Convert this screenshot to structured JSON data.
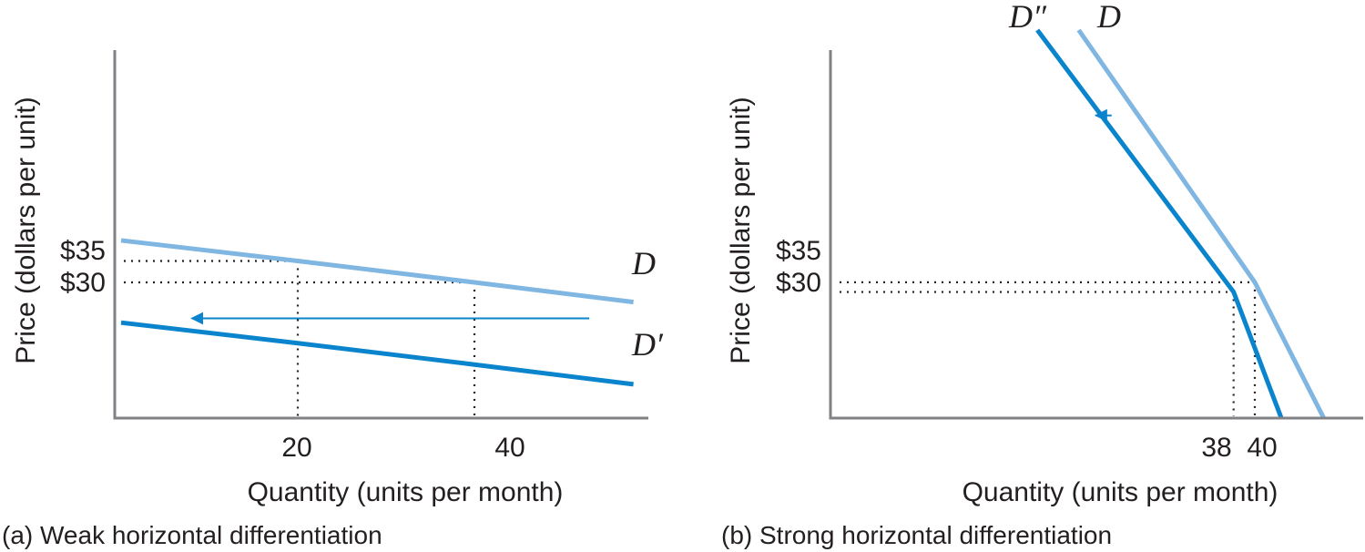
{
  "colors": {
    "axis": "#808285",
    "dotted": "#231f20",
    "demand_original": "#7fb6e2",
    "demand_shifted": "#0a84cc",
    "text": "#231f20"
  },
  "chart_data": [
    {
      "panel": "a",
      "type": "line",
      "caption": "(a) Weak horizontal differentiation",
      "xlabel": "Quantity (units per month)",
      "ylabel": "Price (dollars per unit)",
      "x_ticks": [
        "20",
        "40"
      ],
      "y_ticks": [
        "$35",
        "$30"
      ],
      "grid": false,
      "series": [
        {
          "name": "D",
          "role": "original",
          "color": "#7fb6e2",
          "points": [
            [
              0,
              37.4
            ],
            [
              20,
              35
            ],
            [
              40,
              32.5
            ],
            [
              58,
              30.2
            ]
          ]
        },
        {
          "name": "D′",
          "role": "shifted",
          "color": "#0a84cc",
          "points": [
            [
              0,
              27.8
            ],
            [
              20,
              25.4
            ],
            [
              40,
              22.9
            ],
            [
              58,
              20.6
            ]
          ]
        }
      ],
      "reference_points": [
        {
          "x": 20,
          "y": 35
        },
        {
          "x": 40,
          "y": 32.5
        }
      ],
      "shift_arrow": {
        "direction": "left",
        "from_x": 53,
        "to_x": 8,
        "y": 28.3
      }
    },
    {
      "panel": "b",
      "type": "line",
      "caption": "(b) Strong horizontal differentiation",
      "xlabel": "Quantity (units per month)",
      "ylabel": "Price (dollars per unit)",
      "x_ticks": [
        "38",
        "40"
      ],
      "y_ticks": [
        "$35",
        "$30"
      ],
      "grid": false,
      "series": [
        {
          "name": "D",
          "role": "original",
          "color": "#7fb6e2",
          "points": [
            [
              23.4,
              100
            ],
            [
              40,
              35
            ],
            [
              46.5,
              0
            ]
          ]
        },
        {
          "name": "D″",
          "role": "shifted",
          "color": "#0a84cc",
          "points": [
            [
              19.5,
              100
            ],
            [
              38,
              32.5
            ],
            [
              42.5,
              0
            ]
          ]
        }
      ],
      "reference_points": [
        {
          "x": 40,
          "y": 35
        },
        {
          "x": 38,
          "y": 32.5
        }
      ],
      "shift_arrow": {
        "direction": "left",
        "from_x": 26.5,
        "to_x": 25,
        "y": 78
      }
    }
  ]
}
